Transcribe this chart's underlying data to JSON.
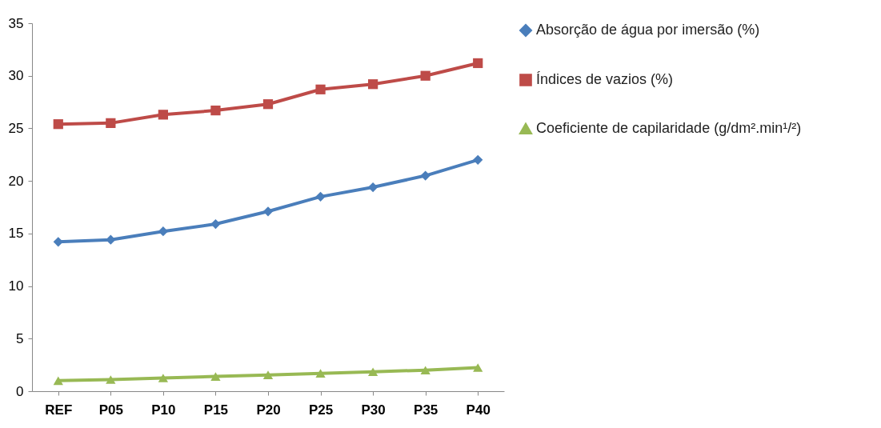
{
  "chart_data": {
    "type": "line",
    "categories": [
      "REF",
      "P05",
      "P10",
      "P15",
      "P20",
      "P25",
      "P30",
      "P35",
      "P40"
    ],
    "series": [
      {
        "name": "Absorção de água por imersão (%)",
        "color": "#4a7ebb",
        "marker": "diamond",
        "values": [
          14.2,
          14.4,
          15.2,
          15.9,
          17.1,
          18.5,
          19.4,
          20.5,
          22.0
        ]
      },
      {
        "name": "Índices de vazios (%)",
        "color": "#be4b48",
        "marker": "square",
        "values": [
          25.4,
          25.5,
          26.3,
          26.7,
          27.3,
          28.7,
          29.2,
          30.0,
          31.2
        ]
      },
      {
        "name": "Coeficiente de capilaridade (g/dm².min¹/²)",
        "color": "#98b954",
        "marker": "triangle",
        "values": [
          1.0,
          1.1,
          1.25,
          1.4,
          1.55,
          1.7,
          1.85,
          2.0,
          2.25
        ]
      }
    ],
    "ylim": [
      0,
      35
    ],
    "yticks": [
      0,
      5,
      10,
      15,
      20,
      25,
      30,
      35
    ],
    "grid": false,
    "legend": "right"
  }
}
